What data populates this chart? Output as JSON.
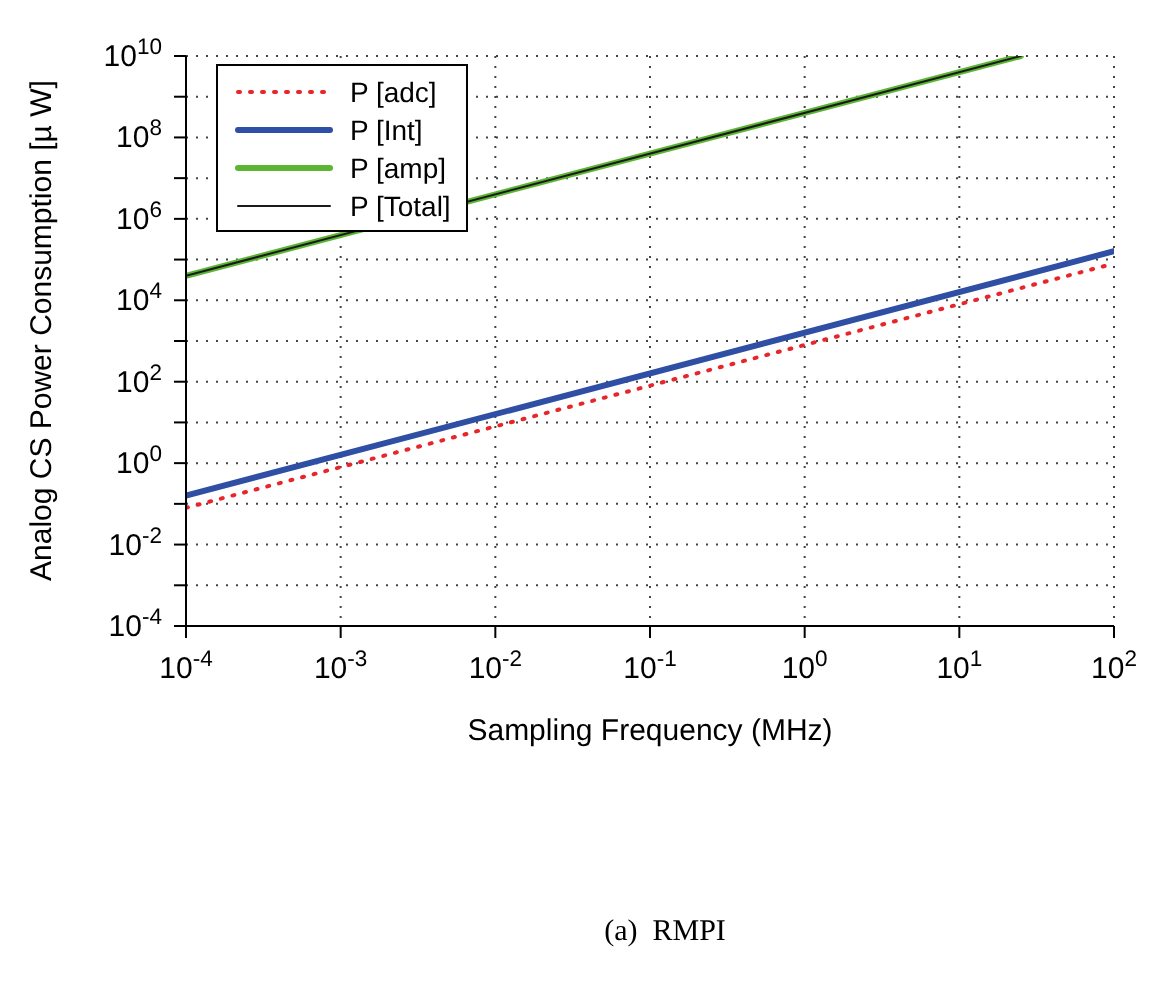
{
  "chart_data": {
    "type": "line",
    "xlabel": "Sampling Frequency (MHz)",
    "ylabel": "Analog CS Power Consumption [µ W]",
    "annotations": [
      "(a)  RMPI"
    ],
    "log": "xy",
    "grid": true,
    "legend": "top left",
    "marker": "none",
    "xlim": [
      0.0001,
      100
    ],
    "ylim": [
      0.0001,
      10000000000
    ],
    "xticks": [
      {
        "value": 0.0001,
        "label": "10$^{-4}$"
      },
      {
        "value": 0.001,
        "label": "10$^{-3}$"
      },
      {
        "value": 0.01,
        "label": "10$^{-2}$"
      },
      {
        "value": 0.1,
        "label": "10$^{-1}$"
      },
      {
        "value": 1,
        "label": "10$^{0}$"
      },
      {
        "value": 10,
        "label": "10$^{1}$"
      },
      {
        "value": 100,
        "label": "10$^{2}$"
      }
    ],
    "yticks": [
      {
        "value": 0.0001,
        "label": "10$^{-4}$"
      },
      {
        "value": 0.001,
        "label": null
      },
      {
        "value": 0.01,
        "label": "10$^{-2}$"
      },
      {
        "value": 0.1,
        "label": null
      },
      {
        "value": 1,
        "label": "10$^{0}$"
      },
      {
        "value": 10,
        "label": null
      },
      {
        "value": 100,
        "label": "10$^{2}$"
      },
      {
        "value": 1000,
        "label": null
      },
      {
        "value": 10000,
        "label": "10$^{4}$"
      },
      {
        "value": 100000,
        "label": null
      },
      {
        "value": 1000000,
        "label": "10$^{6}$"
      },
      {
        "value": 10000000,
        "label": null
      },
      {
        "value": 100000000,
        "label": "10$^{8}$"
      },
      {
        "value": 1000000000,
        "label": null
      },
      {
        "value": 10000000000,
        "label": "10$^{10}$"
      }
    ],
    "series": [
      {
        "name": "P [adc]",
        "color": "#e8262a",
        "line_style": "dotted",
        "x": [
          0.0001,
          100
        ],
        "values": [
          0.08,
          80000
        ]
      },
      {
        "name": "P [Int]",
        "color": "#2e4fa3",
        "line_style": "solid",
        "x": [
          0.0001,
          100
        ],
        "values": [
          0.16,
          160000
        ]
      },
      {
        "name": "P [amp]",
        "color": "#5bb532",
        "line_style": "solid",
        "x": [
          0.0001,
          25
        ],
        "values": [
          40000,
          10000000000
        ]
      },
      {
        "name": "P [Total]",
        "color": "#1a1a1a",
        "line_style": "solid",
        "x": [
          0.0001,
          25
        ],
        "values": [
          40000,
          10000000000
        ]
      }
    ]
  }
}
